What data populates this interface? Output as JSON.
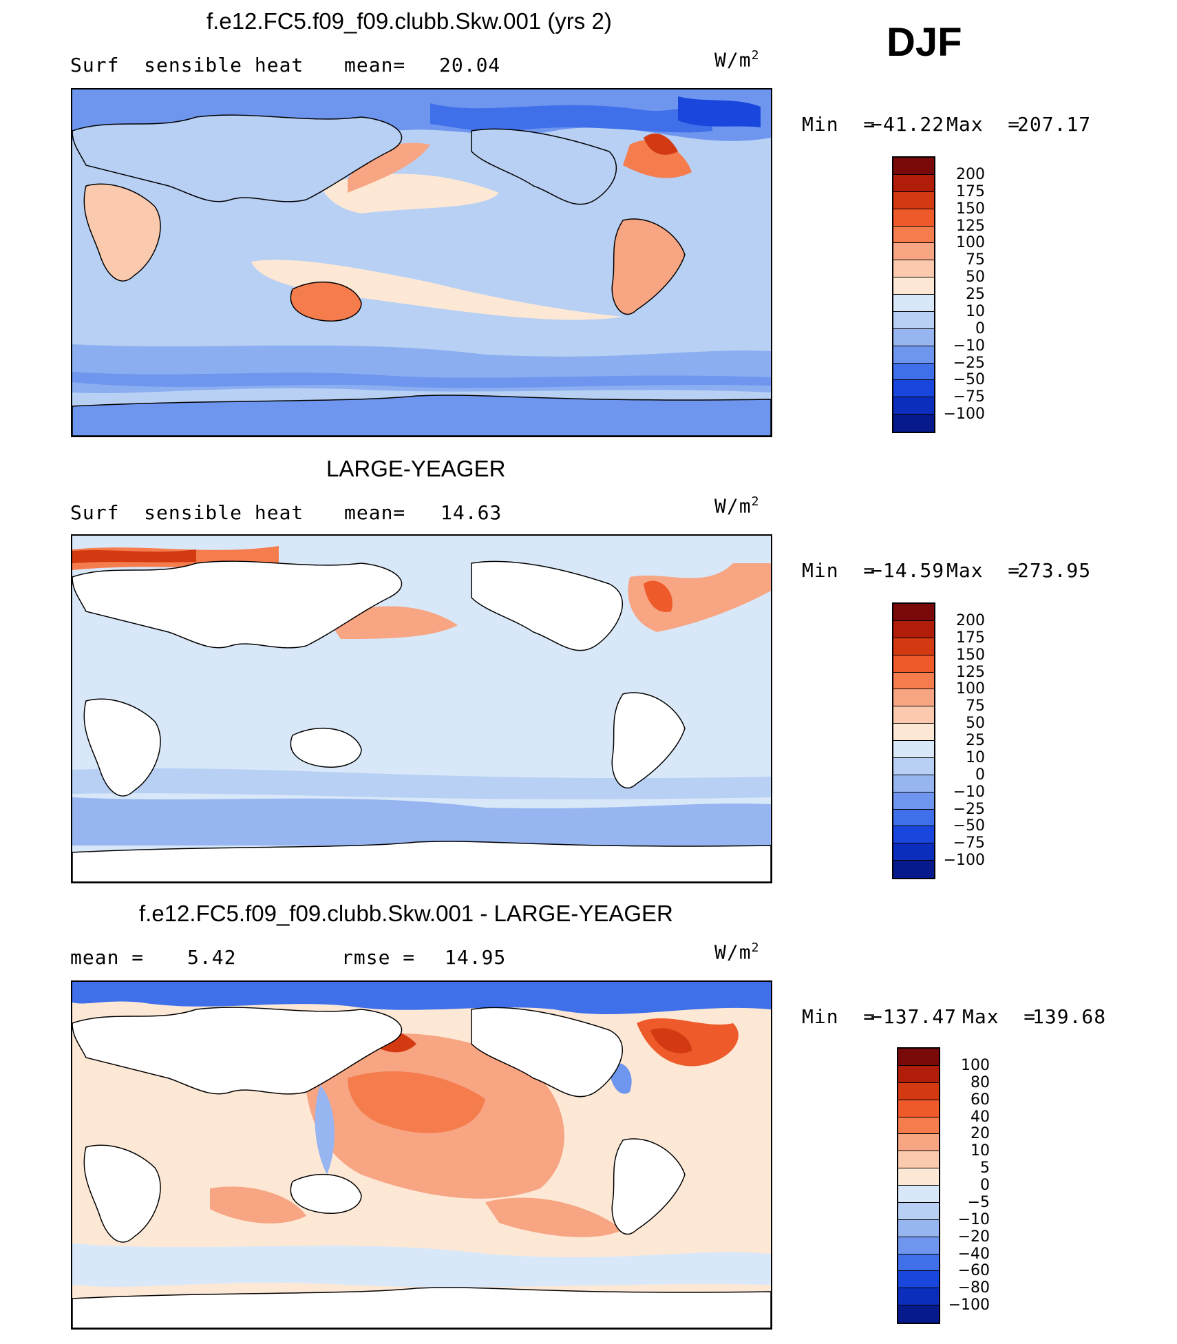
{
  "season": "DJF",
  "units": {
    "base": "W/m",
    "exp": "2"
  },
  "colors": {
    "land_white": "#ffffff",
    "ocean_light": "#d6e6f7",
    "ocean_mid": "#b7cff2",
    "blue_mid": "#8aaef0",
    "blue_strong": "#5b86ea",
    "blue_deep": "#2b5ee3",
    "warm_light": "#fbe3d3",
    "warm_mid": "#f7a983",
    "warm_strong": "#f0703f",
    "warm_deep": "#c9371c"
  },
  "panels": [
    {
      "title": "f.e12.FC5.f09_f09.clubb.Skw.001 (yrs 2)",
      "left_label": "Surf  sensible heat",
      "mean_label": "mean=",
      "mean_value": "20.04",
      "min_label": "Min  =",
      "min_value": "−41.22",
      "max_label": "Max  =",
      "max_value": "207.17",
      "colorbar": {
        "labels": [
          "200",
          "175",
          "150",
          "125",
          "100",
          "75",
          "50",
          "25",
          "10",
          "0",
          "−10",
          "−25",
          "−50",
          "−75",
          "−100"
        ],
        "colors": [
          "#7a0a0a",
          "#b01e0a",
          "#d43a12",
          "#ee5a2a",
          "#f57c4d",
          "#f7a583",
          "#fbc9ad",
          "#fde8d6",
          "#d9e8f8",
          "#b8d0f4",
          "#97b5f1",
          "#6f96ee",
          "#3f6fe9",
          "#1947de",
          "#0b2ebd",
          "#071a8c"
        ]
      }
    },
    {
      "title": "LARGE-YEAGER",
      "left_label": "Surf  sensible heat",
      "mean_label": "mean=",
      "mean_value": "14.63",
      "min_label": "Min  =",
      "min_value": "−14.59",
      "max_label": "Max  =",
      "max_value": "273.95",
      "colorbar": {
        "labels": [
          "200",
          "175",
          "150",
          "125",
          "100",
          "75",
          "50",
          "25",
          "10",
          "0",
          "−10",
          "−25",
          "−50",
          "−75",
          "−100"
        ],
        "colors": [
          "#7a0a0a",
          "#b01e0a",
          "#d43a12",
          "#ee5a2a",
          "#f57c4d",
          "#f7a583",
          "#fbc9ad",
          "#fde8d6",
          "#d9e8f8",
          "#b8d0f4",
          "#97b5f1",
          "#6f96ee",
          "#3f6fe9",
          "#1947de",
          "#0b2ebd",
          "#071a8c"
        ]
      }
    },
    {
      "title": "f.e12.FC5.f09_f09.clubb.Skw.001 - LARGE-YEAGER",
      "mean_label": "mean =",
      "mean_value": "5.42",
      "rmse_label": "rmse =",
      "rmse_value": "14.95",
      "min_label": "Min  =",
      "min_value": "−137.47",
      "max_label": "Max  =",
      "max_value": "139.68",
      "colorbar": {
        "labels": [
          "100",
          "80",
          "60",
          "40",
          "20",
          "10",
          "5",
          "0",
          "−5",
          "−10",
          "−20",
          "−40",
          "−60",
          "−80",
          "−100"
        ],
        "colors": [
          "#7a0a0a",
          "#b01e0a",
          "#d43a12",
          "#ee5a2a",
          "#f57c4d",
          "#f7a583",
          "#fbc9ad",
          "#fde8d6",
          "#d9e8f8",
          "#b8d0f4",
          "#97b5f1",
          "#6f96ee",
          "#3f6fe9",
          "#1947de",
          "#0b2ebd",
          "#071a8c"
        ]
      }
    }
  ]
}
